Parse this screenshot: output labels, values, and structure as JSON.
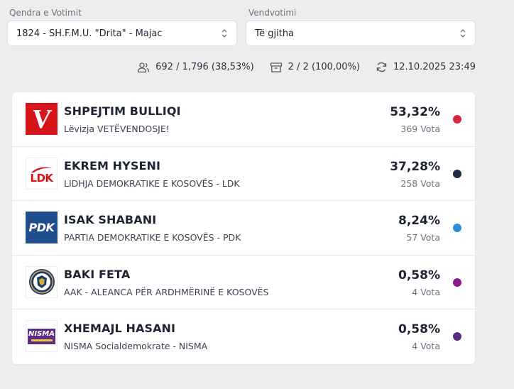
{
  "filters": {
    "center": {
      "label": "Qendra e Votimit",
      "value": "1824 - SH.F.M.U. \"Drita\" - Majac"
    },
    "station": {
      "label": "Vendvotimi",
      "value": "Të gjitha"
    }
  },
  "stats": {
    "turnout": "692 / 1,796 (38,53%)",
    "stations": "2 / 2 (100,00%)",
    "updated": "12.10.2025 23:49"
  },
  "results": [
    {
      "candidate": "SHPEJTIM BULLIQI",
      "party": "Lëvizja VETËVENDOSJE!",
      "percent": "53,32%",
      "votes": "369 Vota",
      "color": "#d7263d",
      "logo_icon": "vv-logo-icon",
      "logo_text": "V"
    },
    {
      "candidate": "EKREM HYSENI",
      "party": "LIDHJA DEMOKRATIKE E KOSOVËS - LDK",
      "percent": "37,28%",
      "votes": "258 Vota",
      "color": "#1e2a44",
      "logo_icon": "ldk-logo-icon",
      "logo_text": "LDK"
    },
    {
      "candidate": "ISAK SHABANI",
      "party": "PARTIA DEMOKRATIKE E KOSOVËS - PDK",
      "percent": "8,24%",
      "votes": "57 Vota",
      "color": "#2b8fd6",
      "logo_icon": "pdk-logo-icon",
      "logo_text": "PDK"
    },
    {
      "candidate": "BAKI FETA",
      "party": "AAK - ALEANCA PËR ARDHMËRINË E KOSOVËS",
      "percent": "0,58%",
      "votes": "4 Vota",
      "color": "#8b1a8b",
      "logo_icon": "aak-logo-icon",
      "logo_text": ""
    },
    {
      "candidate": "XHEMAJL HASANI",
      "party": "NISMA Socialdemokrate - NISMA",
      "percent": "0,58%",
      "votes": "4 Vota",
      "color": "#5b2d82",
      "logo_icon": "nisma-logo-icon",
      "logo_text": "NISMA"
    }
  ]
}
